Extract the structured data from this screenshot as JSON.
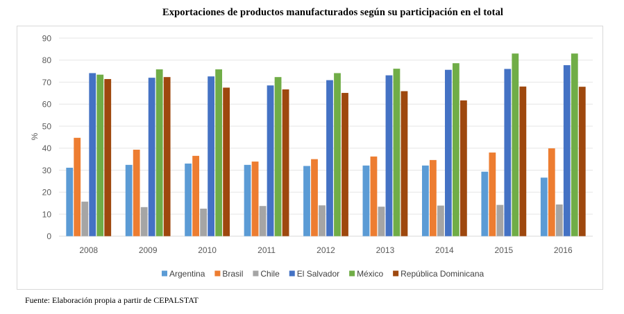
{
  "chart_data": {
    "type": "bar",
    "title": "Exportaciones de productos manufacturados según su participación en el total",
    "xlabel": "",
    "ylabel": "%",
    "ylim": [
      0,
      90
    ],
    "yticks": [
      0,
      10,
      20,
      30,
      40,
      50,
      60,
      70,
      80,
      90
    ],
    "grid": true,
    "legend_position": "bottom",
    "categories": [
      "2008",
      "2009",
      "2010",
      "2011",
      "2012",
      "2013",
      "2014",
      "2015",
      "2016"
    ],
    "series": [
      {
        "name": "Argentina",
        "color": "#5B9BD5",
        "values": [
          31.1,
          32.4,
          33.0,
          32.4,
          31.9,
          32.1,
          32.1,
          29.3,
          26.6
        ]
      },
      {
        "name": "Brasil",
        "color": "#ED7D31",
        "values": [
          44.7,
          39.3,
          36.5,
          33.9,
          35.0,
          36.2,
          34.6,
          38.0,
          39.9
        ]
      },
      {
        "name": "Chile",
        "color": "#A5A5A5",
        "values": [
          15.7,
          13.2,
          12.5,
          13.7,
          14.0,
          13.4,
          13.9,
          14.2,
          14.4
        ]
      },
      {
        "name": "El Salvador",
        "color": "#4472C4",
        "values": [
          74.1,
          72.0,
          72.6,
          68.5,
          70.9,
          73.1,
          75.6,
          76.0,
          77.7
        ]
      },
      {
        "name": "México",
        "color": "#70AD47",
        "values": [
          73.4,
          75.8,
          75.8,
          72.3,
          74.1,
          76.1,
          78.6,
          83.0,
          83.0
        ]
      },
      {
        "name": "República Dominicana",
        "color": "#9E480E",
        "values": [
          71.4,
          72.3,
          67.5,
          66.7,
          65.1,
          65.9,
          61.7,
          68.0,
          67.9
        ]
      }
    ],
    "source": "Fuente: Elaboración propia a partir de CEPALSTAT"
  }
}
